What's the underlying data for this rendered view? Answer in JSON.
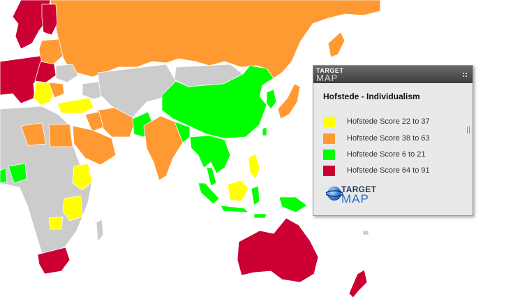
{
  "map": {
    "colors": {
      "score_22_37": "#ffff00",
      "score_38_63": "#ff9a33",
      "score_6_21": "#00ff00",
      "score_64_91": "#cc0033",
      "no_data": "#cccccc",
      "ocean": "#ffffff"
    }
  },
  "legend": {
    "header_brand_top": "TARGET",
    "header_brand_bottom": "MAP",
    "title": "Hofstede - Individualism",
    "items": [
      {
        "label": "Hofstede Score 22 to 37",
        "color": "#ffff00"
      },
      {
        "label": "Hofstede Score 38 to 63",
        "color": "#ff9a33"
      },
      {
        "label": "Hofstede Score 6 to 21",
        "color": "#00ff00"
      },
      {
        "label": "Hofstede Score 64 to 91",
        "color": "#cc0033"
      }
    ],
    "logo_top": "TARGET",
    "logo_bottom": "MAP"
  }
}
